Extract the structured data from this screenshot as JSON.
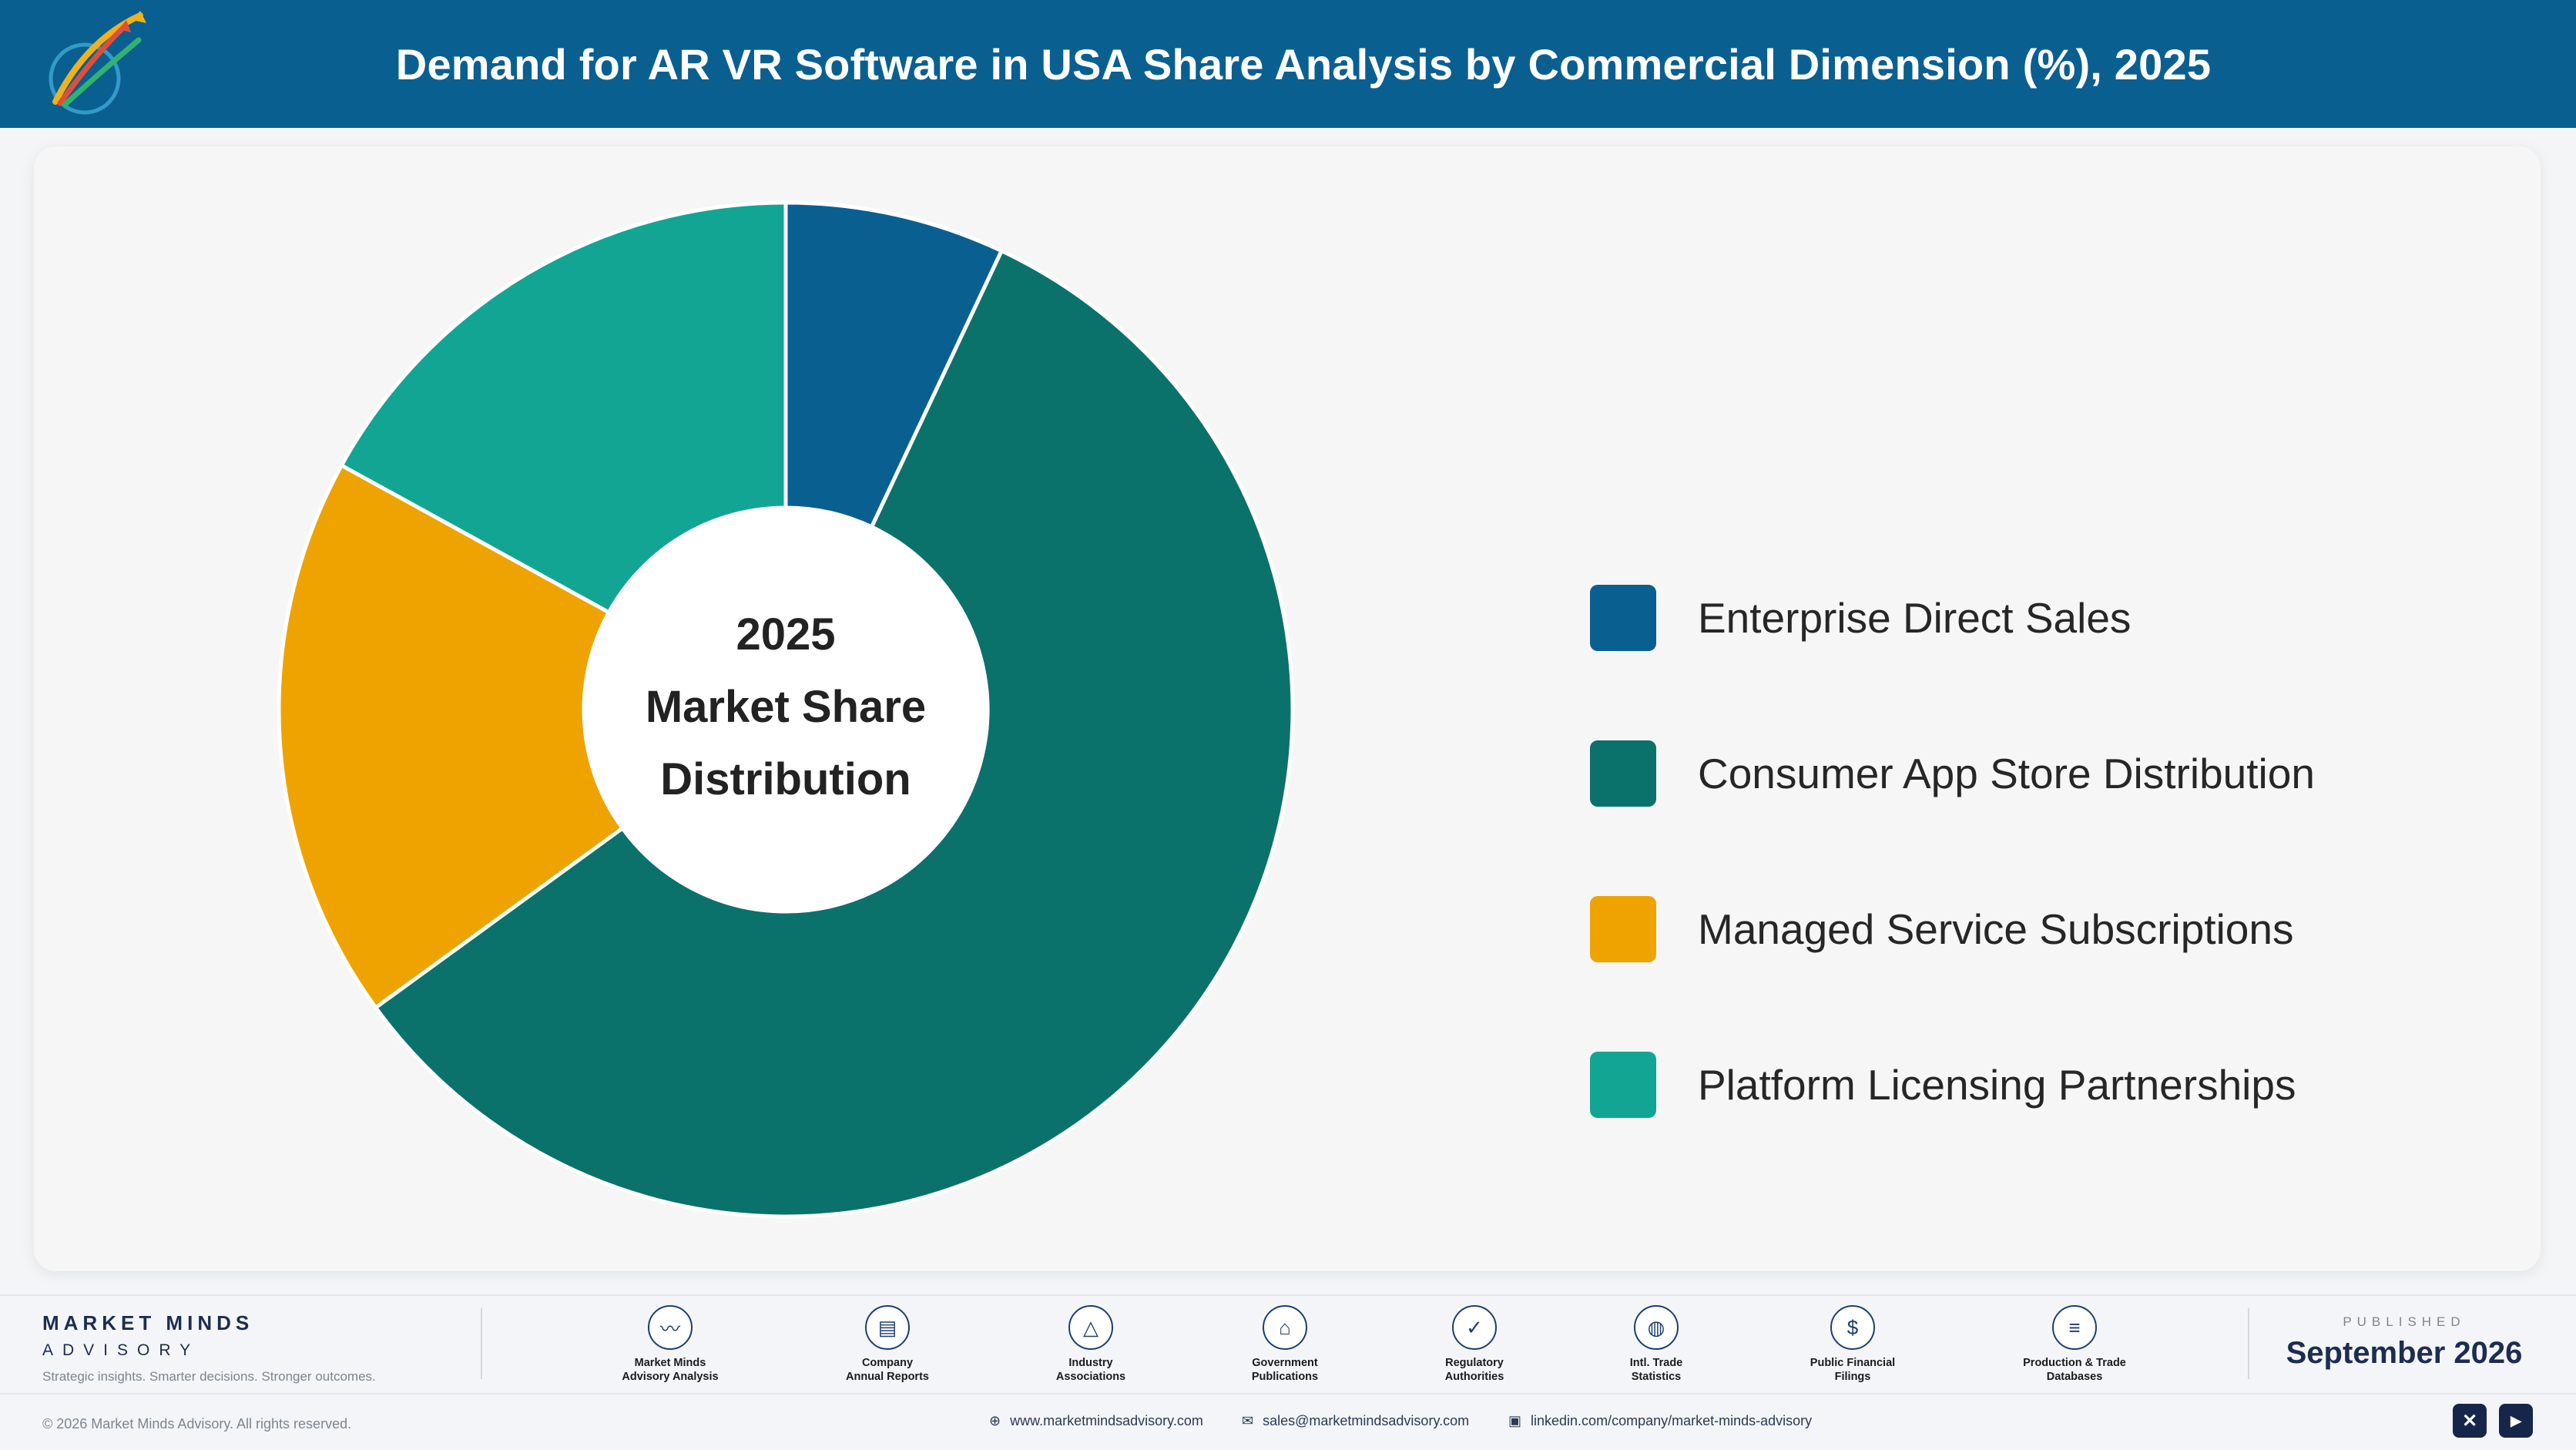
{
  "header": {
    "title": "Demand for AR VR Software in USA Share Analysis by Commercial Dimension (%), 2025",
    "logo_icon": "growth-arrows-logo-icon"
  },
  "chart_data": {
    "type": "pie",
    "donut": true,
    "center_text": [
      "2025",
      "Market Share",
      "Distribution"
    ],
    "categories": [
      "Enterprise Direct Sales",
      "Consumer App Store Distribution",
      "Managed Service Subscriptions",
      "Platform Licensing Partnerships"
    ],
    "values": [
      7,
      58,
      18,
      17
    ],
    "colors": [
      "#0a5f91",
      "#0b716b",
      "#efa300",
      "#12a594"
    ],
    "start_angle": "12 o'clock",
    "direction": "clockwise",
    "legend_position": "right"
  },
  "legend": [
    {
      "label": "Enterprise Direct Sales",
      "color": "#0a5f91"
    },
    {
      "label": "Consumer App Store Distribution",
      "color": "#0b716b"
    },
    {
      "label": "Managed Service Subscriptions",
      "color": "#efa300"
    },
    {
      "label": "Platform Licensing Partnerships",
      "color": "#12a594"
    }
  ],
  "footer": {
    "brand_name": "MARKET MINDS",
    "brand_sub": "ADVISORY",
    "tagline": "Strategic insights. Smarter decisions. Stronger outcomes.",
    "sources": [
      {
        "label": "Market Minds\nAdvisory Analysis",
        "icon": "trend-chart-icon",
        "glyph": "〰"
      },
      {
        "label": "Company\nAnnual Reports",
        "icon": "document-icon",
        "glyph": "▤"
      },
      {
        "label": "Industry\nAssociations",
        "icon": "network-icon",
        "glyph": "△"
      },
      {
        "label": "Government\nPublications",
        "icon": "government-building-icon",
        "glyph": "⌂"
      },
      {
        "label": "Regulatory\nAuthorities",
        "icon": "shield-check-icon",
        "glyph": "✓"
      },
      {
        "label": "Intl. Trade\nStatistics",
        "icon": "globe-icon",
        "glyph": "◍"
      },
      {
        "label": "Public Financial\nFilings",
        "icon": "dollar-coin-icon",
        "glyph": "$"
      },
      {
        "label": "Production & Trade\nDatabases",
        "icon": "database-icon",
        "glyph": "≡"
      }
    ],
    "published_label": "PUBLISHED",
    "published_date": "September 2026",
    "copyright": "© 2026 Market Minds Advisory. All rights reserved.",
    "website": "www.marketmindsadvisory.com",
    "email": "sales@marketmindsadvisory.com",
    "linkedin": "linkedin.com/company/market-minds-advisory",
    "social_x_glyph": "✕",
    "social_youtube_glyph": "▶"
  }
}
